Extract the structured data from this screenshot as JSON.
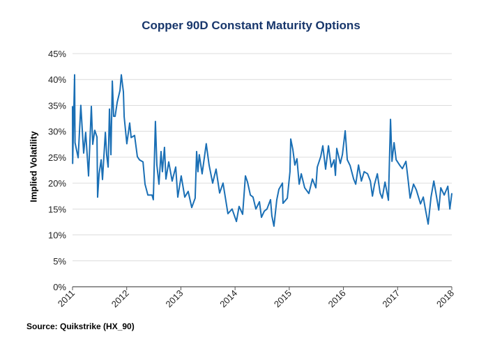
{
  "chart_data": {
    "type": "line",
    "title": "Copper 90D Constant Maturity Options",
    "xlabel": "",
    "ylabel": "Implied Volatility",
    "source": "Source: Quikstrike (HX_90)",
    "xlim": [
      "2011-01-01",
      "2018-01-01"
    ],
    "ylim": [
      0,
      45
    ],
    "x_ticks": [
      "2011",
      "2012",
      "2013",
      "2014",
      "2015",
      "2016",
      "2017",
      "2018"
    ],
    "y_ticks": [
      "0%",
      "5%",
      "10%",
      "15%",
      "20%",
      "25%",
      "30%",
      "35%",
      "40%",
      "45%"
    ],
    "grid": "horizontal",
    "line_color": "#1a6fb5",
    "series": [
      {
        "points": [
          [
            "2011-01-01",
            34.8
          ],
          [
            "2011-01-02",
            23.8
          ],
          [
            "2011-01-15",
            40.9
          ],
          [
            "2011-01-18",
            27.8
          ],
          [
            "2011-02-08",
            24.9
          ],
          [
            "2011-02-26",
            35.0
          ],
          [
            "2011-03-17",
            25.8
          ],
          [
            "2011-03-31",
            29.8
          ],
          [
            "2011-04-19",
            21.4
          ],
          [
            "2011-05-08",
            34.8
          ],
          [
            "2011-05-17",
            27.5
          ],
          [
            "2011-05-31",
            30.2
          ],
          [
            "2011-06-15",
            28.9
          ],
          [
            "2011-06-19",
            17.3
          ],
          [
            "2011-06-29",
            21.8
          ],
          [
            "2011-07-13",
            24.5
          ],
          [
            "2011-07-22",
            20.7
          ],
          [
            "2011-08-10",
            29.8
          ],
          [
            "2011-08-19",
            25.4
          ],
          [
            "2011-08-29",
            23.1
          ],
          [
            "2011-09-07",
            34.3
          ],
          [
            "2011-09-17",
            25.5
          ],
          [
            "2011-09-26",
            39.7
          ],
          [
            "2011-10-05",
            32.9
          ],
          [
            "2011-10-15",
            32.9
          ],
          [
            "2011-10-29",
            35.6
          ],
          [
            "2011-11-17",
            37.9
          ],
          [
            "2011-11-26",
            40.9
          ],
          [
            "2011-12-10",
            37.6
          ],
          [
            "2011-12-15",
            32.8
          ],
          [
            "2012-01-02",
            27.6
          ],
          [
            "2012-01-21",
            31.6
          ],
          [
            "2012-01-31",
            28.8
          ],
          [
            "2012-02-23",
            29.2
          ],
          [
            "2012-03-13",
            25.1
          ],
          [
            "2012-03-27",
            24.5
          ],
          [
            "2012-04-20",
            24.1
          ],
          [
            "2012-05-04",
            19.8
          ],
          [
            "2012-05-23",
            17.7
          ],
          [
            "2012-06-20",
            17.7
          ],
          [
            "2012-06-29",
            16.8
          ],
          [
            "2012-07-13",
            31.9
          ],
          [
            "2012-07-23",
            23.5
          ],
          [
            "2012-08-06",
            19.8
          ],
          [
            "2012-08-20",
            26.1
          ],
          [
            "2012-08-29",
            22.2
          ],
          [
            "2012-09-12",
            26.9
          ],
          [
            "2012-09-22",
            20.8
          ],
          [
            "2012-10-11",
            24.1
          ],
          [
            "2012-11-03",
            20.4
          ],
          [
            "2012-11-27",
            23.1
          ],
          [
            "2012-12-11",
            17.3
          ],
          [
            "2013-01-03",
            21.4
          ],
          [
            "2013-01-27",
            17.3
          ],
          [
            "2013-02-19",
            18.4
          ],
          [
            "2013-03-15",
            15.3
          ],
          [
            "2013-04-07",
            17.1
          ],
          [
            "2013-04-17",
            26.1
          ],
          [
            "2013-04-26",
            22.2
          ],
          [
            "2013-05-05",
            25.5
          ],
          [
            "2013-05-24",
            21.8
          ],
          [
            "2013-06-21",
            27.6
          ],
          [
            "2013-07-10",
            23.5
          ],
          [
            "2013-08-03",
            20.0
          ],
          [
            "2013-08-26",
            22.7
          ],
          [
            "2013-09-19",
            18.1
          ],
          [
            "2013-10-12",
            20.0
          ],
          [
            "2013-11-14",
            14.1
          ],
          [
            "2013-12-12",
            15.0
          ],
          [
            "2014-01-10",
            12.6
          ],
          [
            "2014-01-28",
            15.5
          ],
          [
            "2014-02-21",
            14.0
          ],
          [
            "2014-03-12",
            21.4
          ],
          [
            "2014-03-26",
            20.2
          ],
          [
            "2014-04-14",
            17.7
          ],
          [
            "2014-05-02",
            17.3
          ],
          [
            "2014-05-21",
            15.0
          ],
          [
            "2014-06-14",
            16.4
          ],
          [
            "2014-06-28",
            13.4
          ],
          [
            "2014-07-17",
            14.6
          ],
          [
            "2014-08-04",
            15.0
          ],
          [
            "2014-08-28",
            16.8
          ],
          [
            "2014-09-06",
            13.7
          ],
          [
            "2014-09-20",
            11.7
          ],
          [
            "2014-10-09",
            16.8
          ],
          [
            "2014-10-23",
            18.8
          ],
          [
            "2014-11-16",
            20.0
          ],
          [
            "2014-11-20",
            16.1
          ],
          [
            "2014-12-19",
            17.1
          ],
          [
            "2015-01-06",
            22.2
          ],
          [
            "2015-01-11",
            28.5
          ],
          [
            "2015-01-25",
            26.5
          ],
          [
            "2015-02-08",
            23.5
          ],
          [
            "2015-02-22",
            24.7
          ],
          [
            "2015-03-09",
            19.8
          ],
          [
            "2015-03-23",
            21.8
          ],
          [
            "2015-04-15",
            19.1
          ],
          [
            "2015-05-13",
            18.0
          ],
          [
            "2015-06-06",
            20.8
          ],
          [
            "2015-06-29",
            19.1
          ],
          [
            "2015-07-09",
            23.1
          ],
          [
            "2015-08-01",
            25.1
          ],
          [
            "2015-08-15",
            27.2
          ],
          [
            "2015-09-03",
            22.7
          ],
          [
            "2015-09-22",
            27.2
          ],
          [
            "2015-10-11",
            23.1
          ],
          [
            "2015-10-30",
            24.5
          ],
          [
            "2015-11-08",
            21.5
          ],
          [
            "2015-11-17",
            26.7
          ],
          [
            "2015-12-11",
            23.8
          ],
          [
            "2015-12-25",
            25.5
          ],
          [
            "2016-01-13",
            30.1
          ],
          [
            "2016-01-27",
            24.5
          ],
          [
            "2016-02-15",
            23.4
          ],
          [
            "2016-03-10",
            20.8
          ],
          [
            "2016-03-24",
            19.8
          ],
          [
            "2016-04-12",
            23.5
          ],
          [
            "2016-05-01",
            20.4
          ],
          [
            "2016-05-20",
            22.2
          ],
          [
            "2016-06-12",
            21.8
          ],
          [
            "2016-07-01",
            20.4
          ],
          [
            "2016-07-15",
            17.5
          ],
          [
            "2016-07-29",
            19.8
          ],
          [
            "2016-08-17",
            21.8
          ],
          [
            "2016-09-05",
            18.1
          ],
          [
            "2016-09-19",
            17.1
          ],
          [
            "2016-10-08",
            20.2
          ],
          [
            "2016-10-22",
            18.1
          ],
          [
            "2016-10-31",
            16.7
          ],
          [
            "2016-11-14",
            32.3
          ],
          [
            "2016-11-24",
            24.2
          ],
          [
            "2016-12-08",
            27.8
          ],
          [
            "2016-12-22",
            24.5
          ],
          [
            "2017-01-14",
            23.5
          ],
          [
            "2017-02-02",
            22.8
          ],
          [
            "2017-02-26",
            24.2
          ],
          [
            "2017-03-12",
            20.8
          ],
          [
            "2017-03-26",
            17.1
          ],
          [
            "2017-04-18",
            19.8
          ],
          [
            "2017-05-07",
            18.7
          ],
          [
            "2017-06-04",
            16.0
          ],
          [
            "2017-06-23",
            17.3
          ],
          [
            "2017-07-07",
            15.0
          ],
          [
            "2017-07-26",
            12.1
          ],
          [
            "2017-08-14",
            17.3
          ],
          [
            "2017-09-02",
            20.4
          ],
          [
            "2017-09-16",
            18.1
          ],
          [
            "2017-10-05",
            14.8
          ],
          [
            "2017-10-19",
            19.1
          ],
          [
            "2017-11-11",
            17.7
          ],
          [
            "2017-12-05",
            19.4
          ],
          [
            "2017-12-19",
            15.0
          ],
          [
            "2018-01-01",
            18.0
          ]
        ]
      }
    ]
  }
}
